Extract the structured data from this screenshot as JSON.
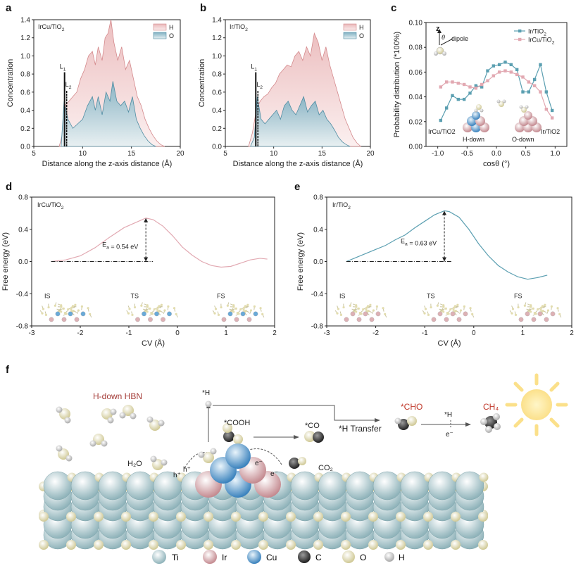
{
  "chart_data": [
    {
      "panel": "a",
      "type": "area",
      "title": "IrCu/TiO2",
      "xlabel": "Distance along the z-axis distance (Å)",
      "ylabel": "Concentration",
      "xlim": [
        5,
        20
      ],
      "ylim": [
        0,
        1.4
      ],
      "xticks": [
        "5",
        "10",
        "15",
        "20"
      ],
      "yticks": [
        "0.0",
        "0.2",
        "0.4",
        "0.6",
        "0.8",
        "1.0",
        "1.2",
        "1.4"
      ],
      "legend": [
        "H",
        "O"
      ],
      "annotations": [
        "L1",
        "L2"
      ],
      "series": [
        {
          "name": "H",
          "x": [
            7.6,
            7.9,
            8.2,
            8.6,
            9.0,
            9.4,
            9.8,
            10.2,
            10.6,
            11.0,
            11.3,
            11.6,
            12.0,
            12.3,
            12.6,
            12.9,
            13.2,
            13.6,
            14.0,
            14.4,
            14.8,
            15.2,
            15.6,
            16.0,
            16.4,
            16.8,
            17.2,
            17.6,
            18.0,
            18.4
          ],
          "values": [
            0,
            0.12,
            0.45,
            0.5,
            0.55,
            0.6,
            0.75,
            0.85,
            1.0,
            1.05,
            0.9,
            1.1,
            0.95,
            1.2,
            1.25,
            1.4,
            1.15,
            0.95,
            1.1,
            0.85,
            0.95,
            0.75,
            0.55,
            0.45,
            0.3,
            0.2,
            0.12,
            0.06,
            0.02,
            0
          ]
        },
        {
          "name": "O",
          "x": [
            7.8,
            8.1,
            8.5,
            9.0,
            9.5,
            10.0,
            10.5,
            11.0,
            11.3,
            11.6,
            12.0,
            12.4,
            12.8,
            13.1,
            13.5,
            13.9,
            14.3,
            14.7,
            15.1,
            15.5,
            15.9,
            16.3,
            16.7,
            17.1,
            17.5
          ],
          "values": [
            0,
            0.5,
            0.3,
            0.2,
            0.25,
            0.3,
            0.45,
            0.55,
            0.4,
            0.55,
            0.35,
            0.6,
            0.5,
            0.72,
            0.5,
            0.45,
            0.5,
            0.38,
            0.55,
            0.3,
            0.2,
            0.12,
            0.06,
            0.02,
            0
          ]
        }
      ]
    },
    {
      "panel": "b",
      "type": "area",
      "title": "Ir/TiO2",
      "xlabel": "Distance along the z-axis distance (Å)",
      "ylabel": "Concentration",
      "xlim": [
        5,
        20
      ],
      "ylim": [
        0,
        1.4
      ],
      "xticks": [
        "5",
        "10",
        "15",
        "20"
      ],
      "yticks": [
        "0.0",
        "0.2",
        "0.4",
        "0.6",
        "0.8",
        "1.0",
        "1.2",
        "1.4"
      ],
      "legend": [
        "H",
        "O"
      ],
      "annotations": [
        "L1",
        "L2"
      ],
      "series": [
        {
          "name": "H",
          "x": [
            7.4,
            7.8,
            8.2,
            8.6,
            9.0,
            9.4,
            9.8,
            10.2,
            10.6,
            11.0,
            11.4,
            11.8,
            12.2,
            12.6,
            13.0,
            13.4,
            13.8,
            14.2,
            14.6,
            15.0,
            15.4,
            15.8,
            16.2,
            16.6,
            17.0,
            17.4,
            17.8,
            18.2,
            18.6,
            19.0
          ],
          "values": [
            0,
            0.15,
            0.4,
            0.5,
            0.55,
            0.58,
            0.65,
            0.7,
            0.8,
            0.85,
            0.9,
            0.88,
            1.0,
            1.05,
            0.95,
            1.1,
            1.0,
            1.25,
            1.15,
            0.95,
            1.1,
            0.9,
            0.75,
            0.6,
            0.45,
            0.3,
            0.2,
            0.1,
            0.04,
            0
          ]
        },
        {
          "name": "O",
          "x": [
            7.6,
            8.0,
            8.3,
            8.7,
            9.1,
            9.5,
            9.9,
            10.3,
            10.7,
            11.1,
            11.5,
            11.9,
            12.3,
            12.7,
            13.1,
            13.5,
            13.9,
            14.3,
            14.7,
            15.1,
            15.5,
            15.9,
            16.3,
            16.7,
            17.1,
            17.5,
            17.9
          ],
          "values": [
            0,
            0.1,
            0.55,
            0.3,
            0.25,
            0.3,
            0.35,
            0.4,
            0.3,
            0.45,
            0.5,
            0.4,
            0.35,
            0.45,
            0.55,
            0.38,
            0.45,
            0.5,
            0.35,
            0.4,
            0.3,
            0.25,
            0.18,
            0.1,
            0.05,
            0.02,
            0
          ]
        }
      ]
    },
    {
      "panel": "c",
      "type": "line",
      "xlabel": "cosθ (°)",
      "ylabel": "Probability distribution (*100%)",
      "xlim": [
        -1.2,
        1.2
      ],
      "ylim": [
        0,
        0.1
      ],
      "xticks": [
        "-1.0",
        "-0.5",
        "0.0",
        "0.5",
        "1.0"
      ],
      "yticks": [
        "0.00",
        "0.02",
        "0.04",
        "0.06",
        "0.08",
        "0.10"
      ],
      "annotations": [
        "z",
        "θ",
        "dipole",
        "IrCu/TiO2",
        "Ir/TiO2",
        "H-down",
        "O-down"
      ],
      "series": [
        {
          "name": "Ir/TiO2",
          "x": [
            -0.95,
            -0.85,
            -0.75,
            -0.65,
            -0.55,
            -0.45,
            -0.35,
            -0.25,
            -0.15,
            -0.05,
            0.05,
            0.15,
            0.25,
            0.35,
            0.45,
            0.55,
            0.65,
            0.75,
            0.85,
            0.95
          ],
          "values": [
            0.021,
            0.031,
            0.041,
            0.038,
            0.038,
            0.043,
            0.049,
            0.048,
            0.061,
            0.065,
            0.066,
            0.068,
            0.066,
            0.062,
            0.044,
            0.044,
            0.054,
            0.066,
            0.044,
            0.029
          ]
        },
        {
          "name": "IrCu/TiO2",
          "x": [
            -0.95,
            -0.85,
            -0.75,
            -0.65,
            -0.55,
            -0.45,
            -0.35,
            -0.25,
            -0.15,
            -0.05,
            0.05,
            0.15,
            0.25,
            0.35,
            0.45,
            0.55,
            0.65,
            0.75,
            0.85,
            0.95
          ],
          "values": [
            0.048,
            0.052,
            0.052,
            0.051,
            0.05,
            0.048,
            0.047,
            0.05,
            0.053,
            0.057,
            0.06,
            0.061,
            0.06,
            0.058,
            0.056,
            0.052,
            0.049,
            0.044,
            0.03,
            0.023
          ]
        }
      ]
    },
    {
      "panel": "d",
      "type": "line",
      "title": "IrCu/TiO2",
      "xlabel": "CV (Å)",
      "ylabel": "Free energy (eV)",
      "xlim": [
        -3,
        2
      ],
      "ylim": [
        -0.8,
        0.8
      ],
      "xticks": [
        "-3",
        "-2",
        "-1",
        "0",
        "1",
        "2"
      ],
      "yticks": [
        "-0.8",
        "-0.4",
        "0.0",
        "0.4",
        "0.8"
      ],
      "annotation": "Ea = 0.54 eV",
      "states": [
        "IS",
        "TS",
        "FS"
      ],
      "series": [
        {
          "name": "IrCu/TiO2",
          "x": [
            -2.6,
            -2.3,
            -2.0,
            -1.7,
            -1.4,
            -1.1,
            -0.8,
            -0.65,
            -0.5,
            -0.3,
            -0.1,
            0.1,
            0.3,
            0.5,
            0.7,
            0.9,
            1.1,
            1.3,
            1.5,
            1.7,
            1.85
          ],
          "values": [
            0.0,
            0.02,
            0.07,
            0.17,
            0.3,
            0.42,
            0.5,
            0.54,
            0.52,
            0.44,
            0.32,
            0.18,
            0.08,
            0.0,
            -0.05,
            -0.07,
            -0.06,
            -0.02,
            0.02,
            0.04,
            0.03
          ]
        }
      ]
    },
    {
      "panel": "e",
      "type": "line",
      "title": "Ir/TiO2",
      "xlabel": "CV (Å)",
      "ylabel": "Free energy (eV)",
      "xlim": [
        -3,
        2
      ],
      "ylim": [
        -0.8,
        0.8
      ],
      "xticks": [
        "-3",
        "-2",
        "-1",
        "0",
        "1",
        "2"
      ],
      "yticks": [
        "-0.8",
        "-0.4",
        "0.0",
        "0.4",
        "0.8"
      ],
      "annotation": "Ea = 0.63 eV",
      "states": [
        "IS",
        "TS",
        "FS"
      ],
      "series": [
        {
          "name": "Ir/TiO2",
          "x": [
            -2.6,
            -2.4,
            -2.2,
            -2.0,
            -1.8,
            -1.6,
            -1.4,
            -1.2,
            -1.0,
            -0.8,
            -0.6,
            -0.5,
            -0.3,
            -0.1,
            0.1,
            0.3,
            0.5,
            0.7,
            0.9,
            1.1,
            1.3,
            1.5
          ],
          "values": [
            0.0,
            0.05,
            0.1,
            0.15,
            0.2,
            0.27,
            0.33,
            0.42,
            0.5,
            0.58,
            0.63,
            0.62,
            0.55,
            0.4,
            0.22,
            0.07,
            -0.05,
            -0.13,
            -0.19,
            -0.22,
            -0.2,
            -0.17
          ]
        }
      ]
    }
  ],
  "labels": {
    "a": "a",
    "b": "b",
    "c": "c",
    "d": "d",
    "e": "e",
    "f": "f"
  },
  "scheme": {
    "hbn": "H-down HBN",
    "h_top": "*H",
    "cooh": "*COOH",
    "co": "*CO",
    "h_transfer": "*H Transfer",
    "cho": "*CHO",
    "h_mid": "*H",
    "e_mid": "e⁻",
    "ch4": "CH₄",
    "h2o": "H₂O",
    "co2": "CO₂",
    "hplus1": "h⁺",
    "hplus2": "h⁺",
    "eminus1": "e⁻",
    "eminus2": "e⁻",
    "legend": [
      "Ti",
      "Ir",
      "Cu",
      "C",
      "O",
      "H"
    ]
  },
  "colors": {
    "H_fill": "#f0c9c9",
    "H_line": "#d4898c",
    "O_fill": "#a9cbd5",
    "O_line": "#4f8da3",
    "ir_line": "#5b9fb1",
    "ircu_line": "#e2a9b2",
    "Ti": "#b7d1d5",
    "Ir": "#ddb1b5",
    "Cu": "#6aaad8",
    "C": "#3a3a3a",
    "O": "#ece7bf",
    "H": "#d8d8d8"
  }
}
